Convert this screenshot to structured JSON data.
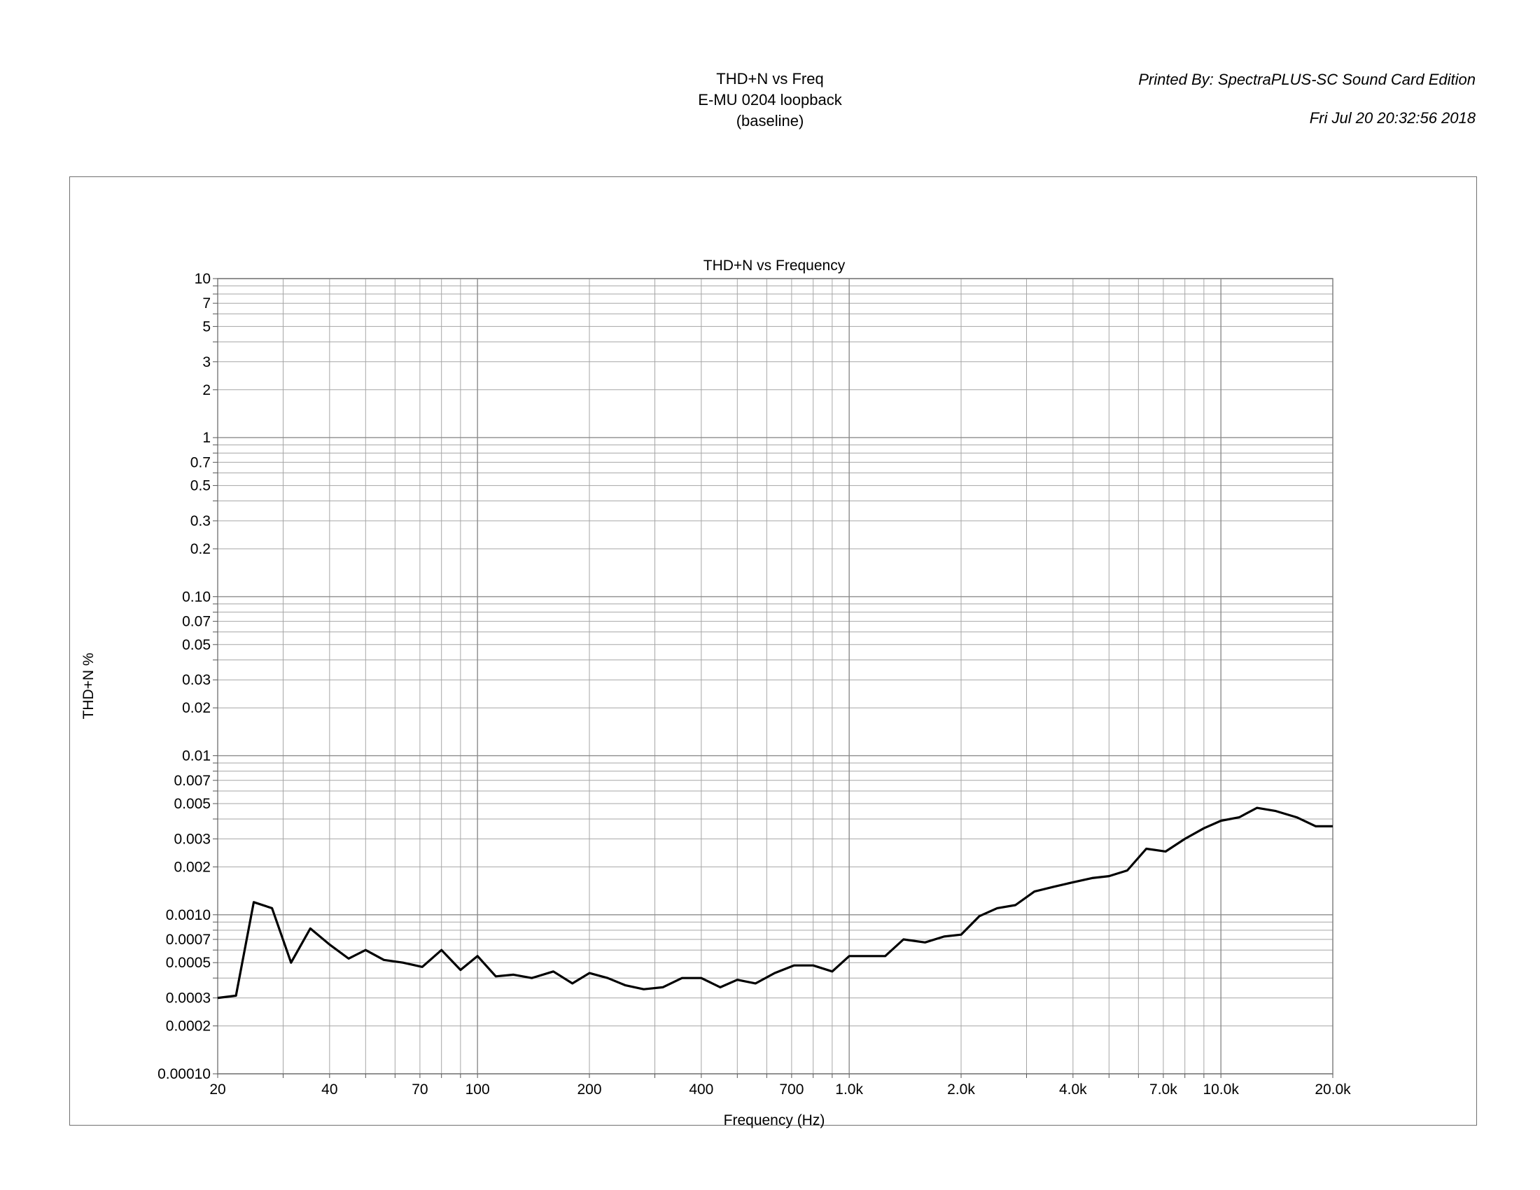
{
  "header": {
    "title_lines": [
      "THD+N vs Freq",
      "E-MU 0204 loopback",
      "(baseline)"
    ],
    "printed_by": "Printed By: SpectraPLUS-SC Sound Card Edition",
    "printed_date": "Fri Jul 20 20:32:56 2018"
  },
  "chart_data": {
    "type": "line",
    "title": "THD+N vs Frequency",
    "xlabel": "Frequency (Hz)",
    "ylabel": "THD+N %",
    "x_scale": "log",
    "y_scale": "log",
    "xlim": [
      20,
      20000
    ],
    "ylim": [
      0.0001,
      10
    ],
    "grid": true,
    "legend": "none",
    "line_color": "#000000",
    "x_ticks": [
      {
        "v": 20,
        "label": "20"
      },
      {
        "v": 40,
        "label": "40"
      },
      {
        "v": 70,
        "label": "70"
      },
      {
        "v": 100,
        "label": "100"
      },
      {
        "v": 200,
        "label": "200"
      },
      {
        "v": 400,
        "label": "400"
      },
      {
        "v": 700,
        "label": "700"
      },
      {
        "v": 1000,
        "label": "1.0k"
      },
      {
        "v": 2000,
        "label": "2.0k"
      },
      {
        "v": 4000,
        "label": "4.0k"
      },
      {
        "v": 7000,
        "label": "7.0k"
      },
      {
        "v": 10000,
        "label": "10.0k"
      },
      {
        "v": 20000,
        "label": "20.0k"
      }
    ],
    "y_ticks": [
      {
        "v": 10,
        "label": "10"
      },
      {
        "v": 7,
        "label": "7"
      },
      {
        "v": 5,
        "label": "5"
      },
      {
        "v": 3,
        "label": "3"
      },
      {
        "v": 2,
        "label": "2"
      },
      {
        "v": 1,
        "label": "1"
      },
      {
        "v": 0.7,
        "label": "0.7"
      },
      {
        "v": 0.5,
        "label": "0.5"
      },
      {
        "v": 0.3,
        "label": "0.3"
      },
      {
        "v": 0.2,
        "label": "0.2"
      },
      {
        "v": 0.1,
        "label": "0.10"
      },
      {
        "v": 0.07,
        "label": "0.07"
      },
      {
        "v": 0.05,
        "label": "0.05"
      },
      {
        "v": 0.03,
        "label": "0.03"
      },
      {
        "v": 0.02,
        "label": "0.02"
      },
      {
        "v": 0.01,
        "label": "0.01"
      },
      {
        "v": 0.007,
        "label": "0.007"
      },
      {
        "v": 0.005,
        "label": "0.005"
      },
      {
        "v": 0.003,
        "label": "0.003"
      },
      {
        "v": 0.002,
        "label": "0.002"
      },
      {
        "v": 0.001,
        "label": "0.0010"
      },
      {
        "v": 0.0007,
        "label": "0.0007"
      },
      {
        "v": 0.0005,
        "label": "0.0005"
      },
      {
        "v": 0.0003,
        "label": "0.0003"
      },
      {
        "v": 0.0002,
        "label": "0.0002"
      },
      {
        "v": 0.0001,
        "label": "0.00010"
      }
    ],
    "series": [
      {
        "x": [
          20,
          22.4,
          25,
          28,
          31.5,
          35.5,
          40,
          45,
          50,
          56,
          63,
          71,
          80,
          90,
          100,
          112,
          125,
          140,
          160,
          180,
          200,
          224,
          250,
          280,
          315,
          355,
          400,
          450,
          500,
          560,
          630,
          710,
          800,
          900,
          1000,
          1120,
          1250,
          1400,
          1600,
          1800,
          2000,
          2240,
          2500,
          2800,
          3150,
          3550,
          4000,
          4500,
          5000,
          5600,
          6300,
          7100,
          8000,
          9000,
          10000,
          11200,
          12500,
          14000,
          16000,
          18000,
          20000
        ],
        "y": [
          0.0003,
          0.00031,
          0.0012,
          0.0011,
          0.0005,
          0.00082,
          0.00065,
          0.00053,
          0.0006,
          0.00052,
          0.0005,
          0.00047,
          0.0006,
          0.00045,
          0.00055,
          0.00041,
          0.00042,
          0.0004,
          0.00044,
          0.00037,
          0.00043,
          0.0004,
          0.00036,
          0.00034,
          0.00035,
          0.0004,
          0.0004,
          0.00035,
          0.00039,
          0.00037,
          0.00043,
          0.00048,
          0.00048,
          0.00044,
          0.00055,
          0.00055,
          0.00055,
          0.0007,
          0.00067,
          0.00073,
          0.00075,
          0.00098,
          0.0011,
          0.00115,
          0.0014,
          0.0015,
          0.0016,
          0.0017,
          0.00175,
          0.0019,
          0.0026,
          0.0025,
          0.003,
          0.0035,
          0.0039,
          0.0041,
          0.0047,
          0.0045,
          0.0041,
          0.0036,
          0.0036
        ]
      }
    ]
  }
}
